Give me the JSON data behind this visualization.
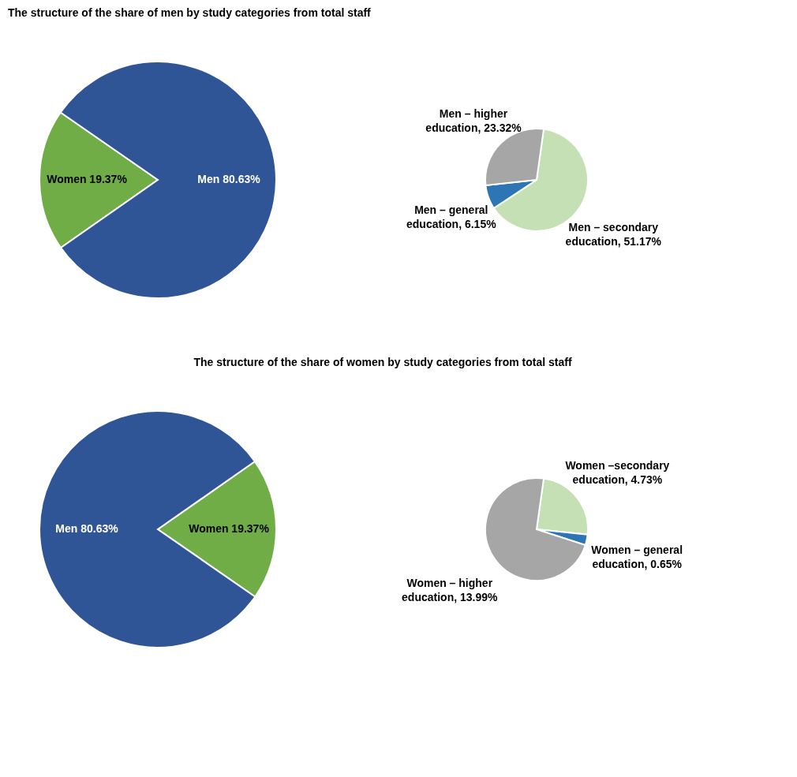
{
  "chart_data": [
    {
      "type": "pie",
      "title": "The structure of the share of men by study categories from total staff",
      "categories": [
        "Women",
        "Men"
      ],
      "values": [
        19.37,
        80.63
      ],
      "colors": [
        "#70ad47",
        "#2f5597"
      ],
      "value_labels": [
        "19.37%",
        "80.63%"
      ]
    },
    {
      "type": "pie",
      "categories": [
        "Men – secondary education",
        "Men – general education",
        "Men – higher education"
      ],
      "values": [
        51.17,
        6.15,
        23.32
      ],
      "colors": [
        "#c5e0b4",
        "#2e75b6",
        "#a6a6a6"
      ],
      "value_labels": [
        "51.17%",
        "6.15%",
        "23.32%"
      ]
    },
    {
      "type": "pie",
      "title": "The structure of the share of women by study categories from total staff",
      "categories": [
        "Women",
        "Men"
      ],
      "values": [
        19.37,
        80.63
      ],
      "colors": [
        "#70ad47",
        "#2f5597"
      ],
      "value_labels": [
        "19.37%",
        "80.63%"
      ]
    },
    {
      "type": "pie",
      "categories": [
        "Women –secondary education",
        "Women – general education",
        "Women – higher education"
      ],
      "values": [
        4.73,
        0.65,
        13.99
      ],
      "colors": [
        "#c5e0b4",
        "#2e75b6",
        "#a6a6a6"
      ],
      "value_labels": [
        "4.73%",
        "0.65%",
        "13.99%"
      ]
    }
  ]
}
